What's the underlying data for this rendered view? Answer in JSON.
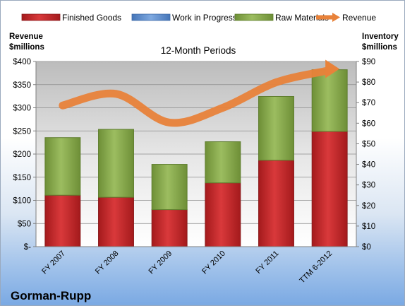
{
  "chart_data": {
    "type": "bar",
    "title": "12-Month Periods",
    "company": "Gorman-Rupp",
    "categories": [
      "FY 2007",
      "FY 2008",
      "FY 2009",
      "FY 2010",
      "FY 2011",
      "TTM 6-2012"
    ],
    "series": [
      {
        "name": "Finished Goods",
        "axis": "right",
        "color": "#c0282b",
        "values": [
          25,
          24,
          18,
          31,
          42,
          56
        ]
      },
      {
        "name": "Work in Progress",
        "axis": "right",
        "color": "#5b8fd4",
        "values": [
          0,
          0,
          0,
          0,
          0,
          0
        ]
      },
      {
        "name": "Raw Materials",
        "axis": "right",
        "color": "#86a84c",
        "values": [
          28,
          33,
          22,
          20,
          31,
          30
        ]
      }
    ],
    "line": {
      "name": "Revenue",
      "axis": "left",
      "color": "#e8823a",
      "values": [
        305,
        330,
        268,
        300,
        355,
        381
      ]
    },
    "left_axis": {
      "label_line1": "Revenue",
      "label_line2": "$millions",
      "ylim": [
        0,
        400
      ],
      "ticks": [
        "$-",
        "$50",
        "$100",
        "$150",
        "$200",
        "$250",
        "$300",
        "$350",
        "$400"
      ]
    },
    "right_axis": {
      "label_line1": "Inventory",
      "label_line2": "$millions",
      "ylim": [
        0,
        90
      ],
      "ticks": [
        "$0",
        "$10",
        "$20",
        "$30",
        "$40",
        "$50",
        "$60",
        "$70",
        "$80",
        "$90"
      ]
    },
    "stacked": true,
    "grid": true,
    "legend_position": "top"
  }
}
